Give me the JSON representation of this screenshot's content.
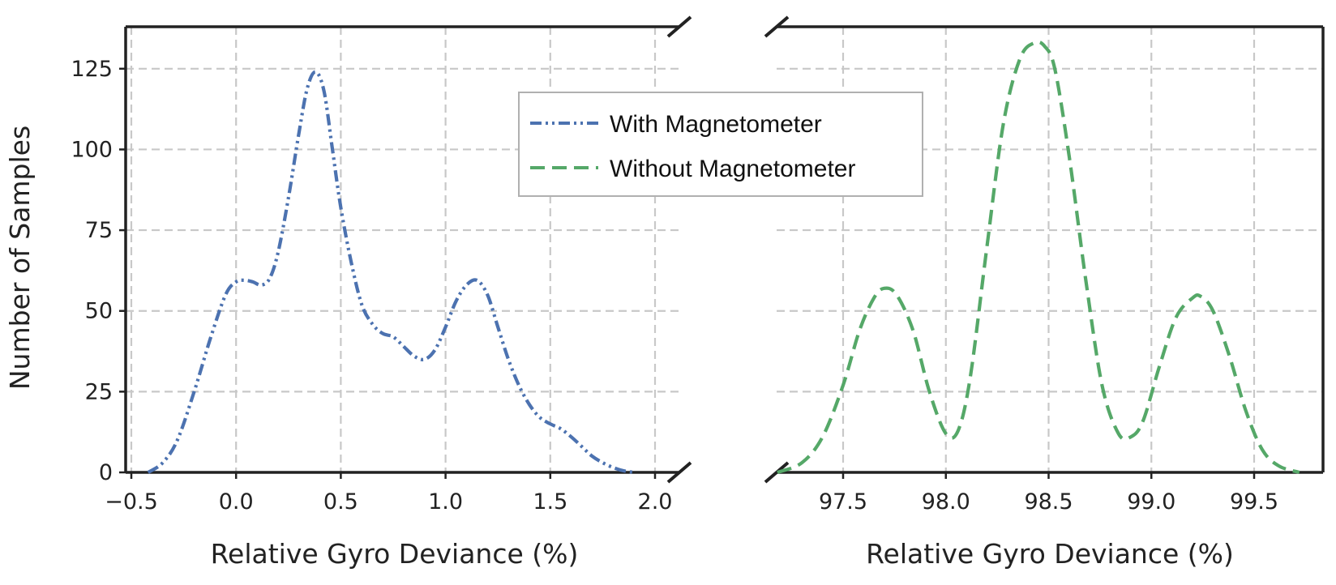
{
  "chart_data": {
    "type": "line",
    "ylabel": "Number of Samples",
    "ylim": [
      0,
      138
    ],
    "yticks": [
      0,
      25,
      50,
      75,
      100,
      125
    ],
    "ytick_labels": [
      "0",
      "25",
      "50",
      "75",
      "100",
      "125"
    ],
    "legend": {
      "placement": "top-center",
      "entries": [
        "With Magnetometer",
        "Without Magnetometer"
      ]
    },
    "panels": [
      {
        "xlabel": "Relative Gyro Deviance (%)",
        "xlim": [
          -0.55,
          2.05
        ],
        "xticks": [
          -0.5,
          0.0,
          0.5,
          1.0,
          1.5,
          2.0
        ],
        "xtick_labels": [
          "−0.5",
          "0.0",
          "0.5",
          "1.0",
          "1.5",
          "2.0"
        ],
        "grid": true,
        "series": [
          {
            "name": "With Magnetometer",
            "color": "#4c72b0",
            "style": "dashdotdot",
            "x": [
              -0.42,
              -0.35,
              -0.28,
              -0.2,
              -0.12,
              -0.05,
              0.0,
              0.04,
              0.08,
              0.12,
              0.16,
              0.2,
              0.25,
              0.3,
              0.34,
              0.38,
              0.42,
              0.46,
              0.5,
              0.55,
              0.6,
              0.65,
              0.7,
              0.75,
              0.8,
              0.85,
              0.9,
              0.95,
              1.0,
              1.05,
              1.1,
              1.15,
              1.2,
              1.25,
              1.3,
              1.35,
              1.4,
              1.45,
              1.5,
              1.55,
              1.6,
              1.65,
              1.7,
              1.75,
              1.8,
              1.85,
              1.9
            ],
            "y": [
              0,
              3,
              10,
              25,
              42,
              55,
              59,
              59.5,
              59,
              58,
              60,
              68,
              85,
              105,
              119,
              124,
              118,
              100,
              82,
              65,
              52,
              46,
              43,
              42,
              39,
              36,
              35,
              38,
              45,
              53,
              58,
              59.5,
              55,
              45,
              35,
              27,
              21,
              17,
              15,
              13.5,
              11,
              8,
              5,
              3,
              1.5,
              0.5,
              0
            ]
          }
        ]
      },
      {
        "xlabel": "Relative Gyro Deviance (%)",
        "xlim": [
          97.1,
          99.9
        ],
        "xticks": [
          97.5,
          98.0,
          98.5,
          99.0,
          99.5
        ],
        "xtick_labels": [
          "97.5",
          "98.0",
          "98.5",
          "99.0",
          "99.5"
        ],
        "grid": true,
        "series": [
          {
            "name": "Without Magnetometer",
            "color": "#55a868",
            "style": "dashed",
            "x": [
              97.18,
              97.3,
              97.4,
              97.5,
              97.58,
              97.65,
              97.7,
              97.76,
              97.84,
              97.92,
              98.0,
              98.06,
              98.12,
              98.2,
              98.28,
              98.36,
              98.43,
              98.48,
              98.53,
              98.6,
              98.68,
              98.76,
              98.84,
              98.9,
              98.96,
              99.04,
              99.12,
              99.2,
              99.24,
              99.3,
              99.38,
              99.46,
              99.54,
              99.62,
              99.72
            ],
            "y": [
              0,
              3,
              11,
              27,
              44,
              54,
              57,
              55,
              44,
              25,
              12,
              13,
              30,
              70,
              108,
              128,
              133,
              132,
              125,
              98,
              60,
              27,
              12,
              11,
              16,
              33,
              48,
              54,
              54.5,
              50,
              36,
              19,
              7,
              2,
              0
            ]
          }
        ]
      }
    ]
  }
}
